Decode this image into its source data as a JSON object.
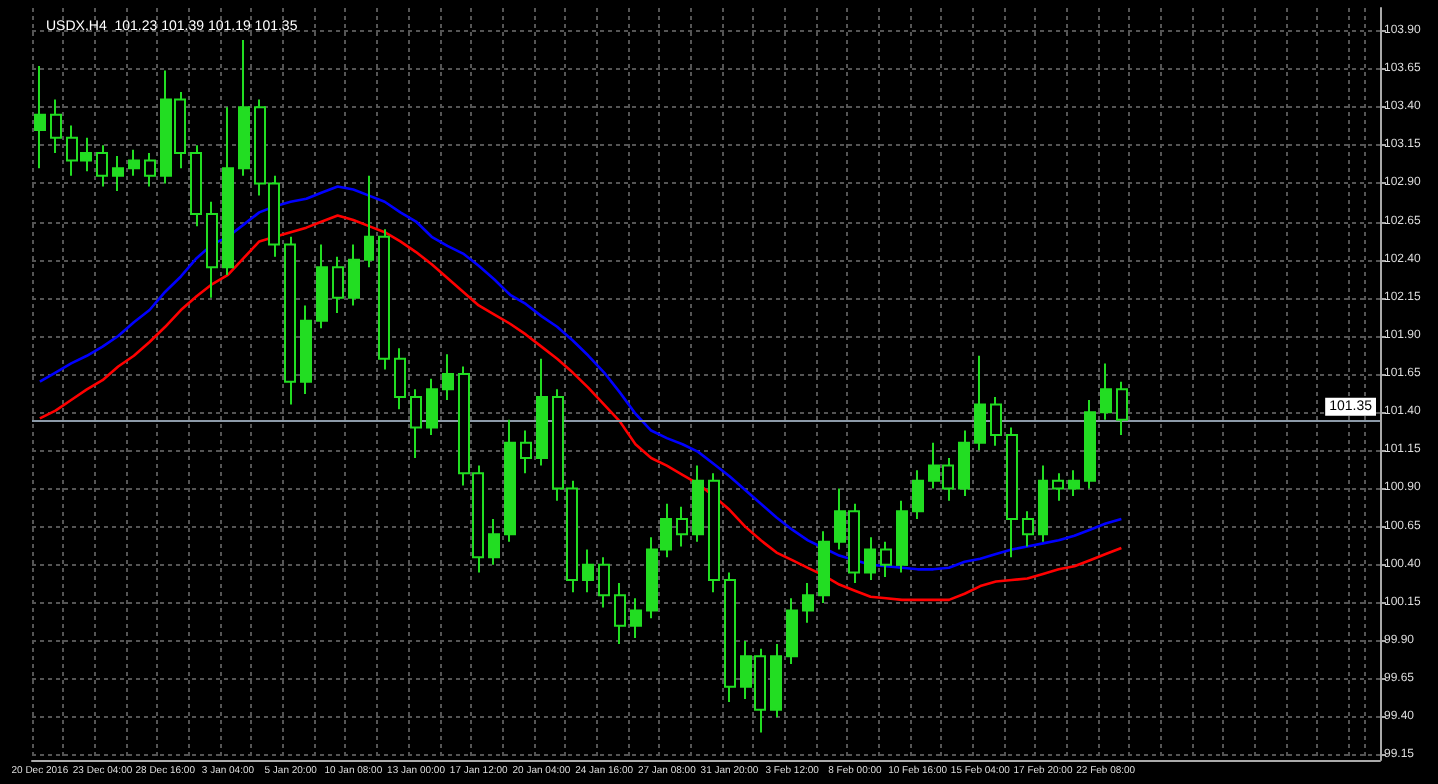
{
  "chart_data": {
    "type": "candlestick",
    "title": "USDX,H4  101.23 101.39 101.19 101.35",
    "categories": [
      "20 Dec 2016",
      null,
      null,
      null,
      "23 Dec 04:00",
      null,
      null,
      null,
      "28 Dec 16:00",
      null,
      null,
      null,
      "3 Jan 04:00",
      null,
      null,
      null,
      "5 Jan 20:00",
      null,
      null,
      null,
      "10 Jan 08:00",
      null,
      null,
      null,
      "13 Jan 00:00",
      null,
      null,
      null,
      "17 Jan 12:00",
      null,
      null,
      null,
      "20 Jan 04:00",
      null,
      null,
      null,
      "24 Jan 16:00",
      null,
      null,
      null,
      "27 Jan 08:00",
      null,
      null,
      null,
      "31 Jan 20:00",
      null,
      null,
      null,
      "3 Feb 12:00",
      null,
      null,
      null,
      "8 Feb 00:00",
      null,
      null,
      null,
      "10 Feb 16:00",
      null,
      null,
      null,
      "15 Feb 04:00",
      null,
      null,
      null,
      "17 Feb 20:00",
      null,
      null,
      null,
      "22 Feb 08:00",
      null,
      null,
      null,
      null,
      null,
      null,
      null,
      null,
      null,
      null,
      null,
      null,
      null,
      null,
      null,
      null,
      null
    ],
    "series": [
      {
        "color": "#22dd22",
        "ohlc": [
          [
            103.25,
            103.67,
            103.0,
            103.35
          ],
          [
            103.35,
            103.45,
            103.1,
            103.2
          ],
          [
            103.2,
            103.28,
            102.95,
            103.05
          ],
          [
            103.05,
            103.2,
            102.98,
            103.1
          ],
          [
            103.1,
            103.15,
            102.88,
            102.95
          ],
          [
            102.95,
            103.08,
            102.85,
            103.0
          ],
          [
            103.0,
            103.12,
            102.95,
            103.05
          ],
          [
            103.05,
            103.1,
            102.88,
            102.95
          ],
          [
            102.95,
            103.64,
            102.9,
            103.45
          ],
          [
            103.45,
            103.5,
            103.0,
            103.1
          ],
          [
            103.1,
            103.15,
            102.62,
            102.7
          ],
          [
            102.7,
            102.78,
            102.15,
            102.35
          ],
          [
            102.35,
            103.4,
            102.3,
            103.0
          ],
          [
            103.0,
            103.84,
            102.95,
            103.4
          ],
          [
            103.4,
            103.45,
            102.82,
            102.9
          ],
          [
            102.9,
            102.95,
            102.42,
            102.5
          ],
          [
            102.5,
            102.55,
            101.45,
            101.6
          ],
          [
            101.6,
            102.1,
            101.52,
            102.0
          ],
          [
            102.0,
            102.5,
            101.95,
            102.35
          ],
          [
            102.35,
            102.42,
            102.05,
            102.15
          ],
          [
            102.15,
            102.5,
            102.1,
            102.4
          ],
          [
            102.4,
            102.95,
            102.35,
            102.55
          ],
          [
            102.55,
            102.6,
            101.68,
            101.75
          ],
          [
            101.75,
            101.82,
            101.42,
            101.5
          ],
          [
            101.5,
            101.55,
            101.1,
            101.3
          ],
          [
            101.3,
            101.62,
            101.25,
            101.55
          ],
          [
            101.55,
            101.78,
            101.48,
            101.65
          ],
          [
            101.65,
            101.7,
            100.92,
            101.0
          ],
          [
            101.0,
            101.05,
            100.35,
            100.45
          ],
          [
            100.45,
            100.7,
            100.4,
            100.6
          ],
          [
            100.6,
            101.35,
            100.55,
            101.2
          ],
          [
            101.2,
            101.28,
            101.0,
            101.1
          ],
          [
            101.1,
            101.75,
            101.05,
            101.5
          ],
          [
            101.5,
            101.55,
            100.82,
            100.9
          ],
          [
            100.9,
            100.95,
            100.22,
            100.3
          ],
          [
            100.3,
            100.5,
            100.22,
            100.4
          ],
          [
            100.4,
            100.45,
            100.12,
            100.2
          ],
          [
            100.2,
            100.28,
            99.88,
            100.0
          ],
          [
            100.0,
            100.18,
            99.92,
            100.1
          ],
          [
            100.1,
            100.58,
            100.05,
            100.5
          ],
          [
            100.5,
            100.8,
            100.45,
            100.7
          ],
          [
            100.7,
            100.78,
            100.52,
            100.6
          ],
          [
            100.6,
            101.05,
            100.55,
            100.95
          ],
          [
            100.95,
            101.0,
            100.22,
            100.3
          ],
          [
            100.3,
            100.35,
            99.5,
            99.6
          ],
          [
            99.6,
            99.9,
            99.52,
            99.8
          ],
          [
            99.8,
            99.85,
            99.3,
            99.45
          ],
          [
            99.45,
            99.88,
            99.4,
            99.8
          ],
          [
            99.8,
            100.18,
            99.75,
            100.1
          ],
          [
            100.1,
            100.28,
            100.02,
            100.2
          ],
          [
            100.2,
            100.62,
            100.15,
            100.55
          ],
          [
            100.55,
            100.9,
            100.5,
            100.75
          ],
          [
            100.75,
            100.8,
            100.28,
            100.35
          ],
          [
            100.35,
            100.58,
            100.3,
            100.5
          ],
          [
            100.5,
            100.55,
            100.32,
            100.4
          ],
          [
            100.4,
            100.82,
            100.35,
            100.75
          ],
          [
            100.75,
            101.02,
            100.7,
            100.95
          ],
          [
            100.95,
            101.2,
            100.9,
            101.05
          ],
          [
            101.05,
            101.1,
            100.82,
            100.9
          ],
          [
            100.9,
            101.28,
            100.85,
            101.2
          ],
          [
            101.2,
            101.77,
            101.15,
            101.45
          ],
          [
            101.45,
            101.5,
            101.18,
            101.25
          ],
          [
            101.25,
            101.3,
            100.45,
            100.7
          ],
          [
            100.7,
            100.75,
            100.52,
            100.6
          ],
          [
            100.6,
            101.05,
            100.55,
            100.95
          ],
          [
            100.95,
            101.0,
            100.82,
            100.9
          ],
          [
            100.9,
            101.02,
            100.85,
            100.95
          ],
          [
            100.95,
            101.48,
            100.9,
            101.4
          ],
          [
            101.4,
            101.72,
            101.35,
            101.55
          ],
          [
            101.55,
            101.6,
            101.25,
            101.35
          ],
          null,
          null,
          null,
          null,
          null,
          null,
          null,
          null,
          null,
          null,
          null,
          null,
          null,
          null,
          null,
          null
        ]
      },
      {
        "type": "line",
        "color": "#0000ff",
        "values": [
          101.6,
          101.66,
          101.72,
          101.77,
          101.83,
          101.9,
          101.99,
          102.07,
          102.19,
          102.29,
          102.41,
          102.5,
          102.55,
          102.63,
          102.71,
          102.75,
          102.78,
          102.8,
          102.84,
          102.88,
          102.86,
          102.82,
          102.78,
          102.71,
          102.65,
          102.55,
          102.49,
          102.44,
          102.36,
          102.27,
          102.17,
          102.11,
          102.03,
          101.96,
          101.87,
          101.77,
          101.66,
          101.53,
          101.39,
          101.28,
          101.23,
          101.19,
          101.14,
          101.06,
          100.98,
          100.89,
          100.8,
          100.71,
          100.63,
          100.56,
          100.51,
          100.46,
          100.43,
          100.4,
          100.39,
          100.38,
          100.37,
          100.37,
          100.38,
          100.42,
          100.44,
          100.47,
          100.5,
          100.52,
          100.54,
          100.56,
          100.59,
          100.63,
          100.67,
          100.7,
          null,
          null,
          null,
          null,
          null,
          null,
          null,
          null,
          null,
          null,
          null,
          null,
          null,
          null,
          null,
          null
        ]
      },
      {
        "type": "line",
        "color": "#ff0000",
        "values": [
          101.36,
          101.41,
          101.48,
          101.55,
          101.61,
          101.7,
          101.77,
          101.86,
          101.96,
          102.07,
          102.16,
          102.24,
          102.3,
          102.41,
          102.52,
          102.55,
          102.58,
          102.61,
          102.65,
          102.69,
          102.66,
          102.62,
          102.58,
          102.52,
          102.45,
          102.37,
          102.28,
          102.19,
          102.1,
          102.04,
          101.98,
          101.91,
          101.83,
          101.75,
          101.66,
          101.56,
          101.45,
          101.34,
          101.19,
          101.1,
          101.05,
          100.99,
          100.93,
          100.85,
          100.76,
          100.65,
          100.56,
          100.48,
          100.43,
          100.38,
          100.33,
          100.27,
          100.23,
          100.19,
          100.18,
          100.17,
          100.17,
          100.17,
          100.17,
          100.21,
          100.26,
          100.29,
          100.3,
          100.31,
          100.34,
          100.37,
          100.39,
          100.43,
          100.47,
          100.51,
          null,
          null,
          null,
          null,
          null,
          null,
          null,
          null,
          null,
          null,
          null,
          null,
          null,
          null,
          null,
          null
        ]
      }
    ],
    "ylim": [
      99.12,
      104.05
    ],
    "yticks": [
      {
        "value": 99.15,
        "label": "99.15"
      },
      {
        "value": 99.4,
        "label": "99.40"
      },
      {
        "value": 99.65,
        "label": "99.65"
      },
      {
        "value": 99.9,
        "label": "99.90"
      },
      {
        "value": 100.15,
        "label": "100.15"
      },
      {
        "value": 100.4,
        "label": "100.40"
      },
      {
        "value": 100.65,
        "label": "100.65"
      },
      {
        "value": 100.9,
        "label": "100.90"
      },
      {
        "value": 101.15,
        "label": "101.15"
      },
      {
        "value": 101.4,
        "label": "101.40"
      },
      {
        "value": 101.65,
        "label": "101.65"
      },
      {
        "value": 101.9,
        "label": "101.90"
      },
      {
        "value": 102.15,
        "label": "102.15"
      },
      {
        "value": 102.4,
        "label": "102.40"
      },
      {
        "value": 102.65,
        "label": "102.65"
      },
      {
        "value": 102.9,
        "label": "102.90"
      },
      {
        "value": 103.15,
        "label": "103.15"
      },
      {
        "value": 103.4,
        "label": "103.40"
      },
      {
        "value": 103.65,
        "label": "103.65"
      },
      {
        "value": 103.9,
        "label": "103.90"
      }
    ],
    "ref_lines": [
      {
        "axis": "y",
        "value": 101.35,
        "label": "101.35",
        "color": "#8c9aa8"
      }
    ],
    "grid": true,
    "marker": "none",
    "line_style": "solid"
  }
}
